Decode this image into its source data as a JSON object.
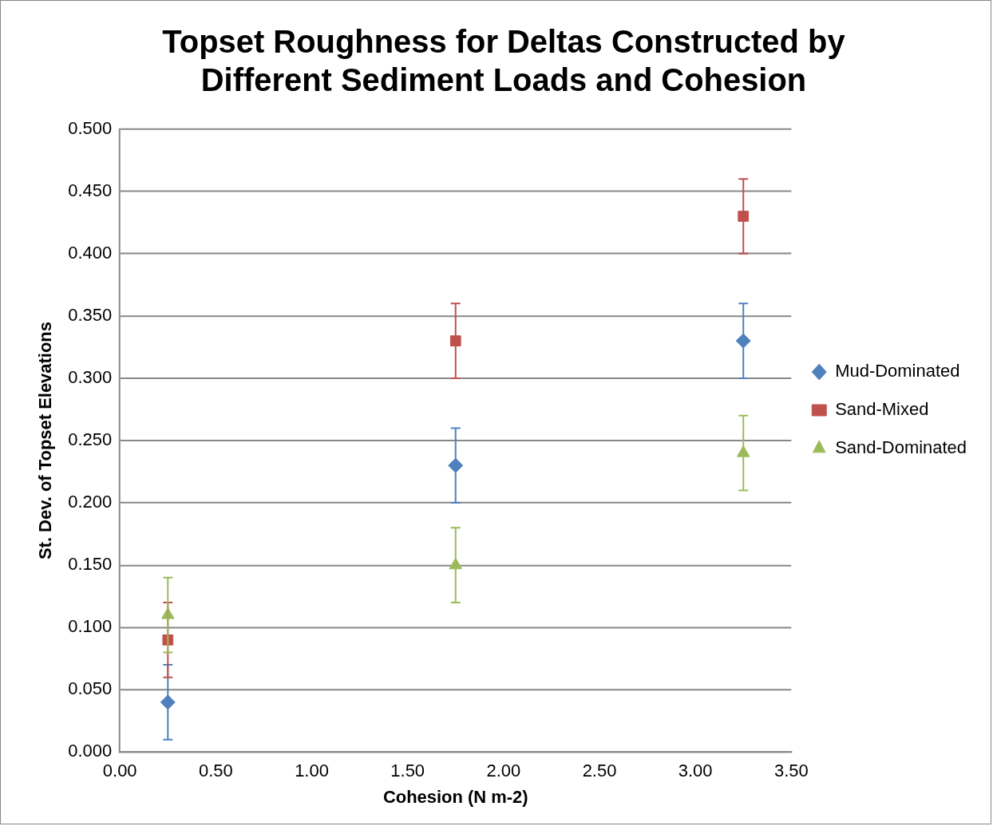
{
  "chart_data": {
    "type": "scatter",
    "title": [
      "Topset Roughness for Deltas Constructed by",
      "Different Sediment Loads and Cohesion"
    ],
    "xlabel": "Cohesion (N m-2)",
    "ylabel": "St. Dev. of Topset Elevations",
    "x": [
      0.25,
      1.75,
      3.25
    ],
    "series": [
      {
        "name": "Mud-Dominated",
        "color": "#4f81bd",
        "marker": "diamond",
        "values": [
          0.04,
          0.23,
          0.33
        ],
        "errors": [
          0.03,
          0.03,
          0.03
        ]
      },
      {
        "name": "Sand-Mixed",
        "color": "#c0504d",
        "marker": "square",
        "values": [
          0.09,
          0.33,
          0.43
        ],
        "errors": [
          0.03,
          0.03,
          0.03
        ]
      },
      {
        "name": "Sand-Dominated",
        "color": "#9bbb59",
        "marker": "triangle",
        "values": [
          0.11,
          0.15,
          0.24
        ],
        "errors": [
          0.03,
          0.03,
          0.03
        ]
      }
    ],
    "xlim": [
      0,
      3.5
    ],
    "xticks": [
      {
        "value": 0,
        "label": "0.00"
      },
      {
        "value": 0.5,
        "label": "0.50"
      },
      {
        "value": 1,
        "label": "1.00"
      },
      {
        "value": 1.5,
        "label": "1.50"
      },
      {
        "value": 2,
        "label": "2.00"
      },
      {
        "value": 2.5,
        "label": "2.50"
      },
      {
        "value": 3,
        "label": "3.00"
      },
      {
        "value": 3.5,
        "label": "3.50"
      }
    ],
    "ylim": [
      0,
      0.5
    ],
    "yticks": [
      {
        "value": 0,
        "label": "0.000"
      },
      {
        "value": 0.05,
        "label": "0.050"
      },
      {
        "value": 0.1,
        "label": "0.100"
      },
      {
        "value": 0.15,
        "label": "0.150"
      },
      {
        "value": 0.2,
        "label": "0.200"
      },
      {
        "value": 0.25,
        "label": "0.250"
      },
      {
        "value": 0.3,
        "label": "0.300"
      },
      {
        "value": 0.35,
        "label": "0.350"
      },
      {
        "value": 0.4,
        "label": "0.400"
      },
      {
        "value": 0.45,
        "label": "0.450"
      },
      {
        "value": 0.5,
        "label": "0.500"
      }
    ],
    "grid": "y",
    "legend": "right"
  }
}
